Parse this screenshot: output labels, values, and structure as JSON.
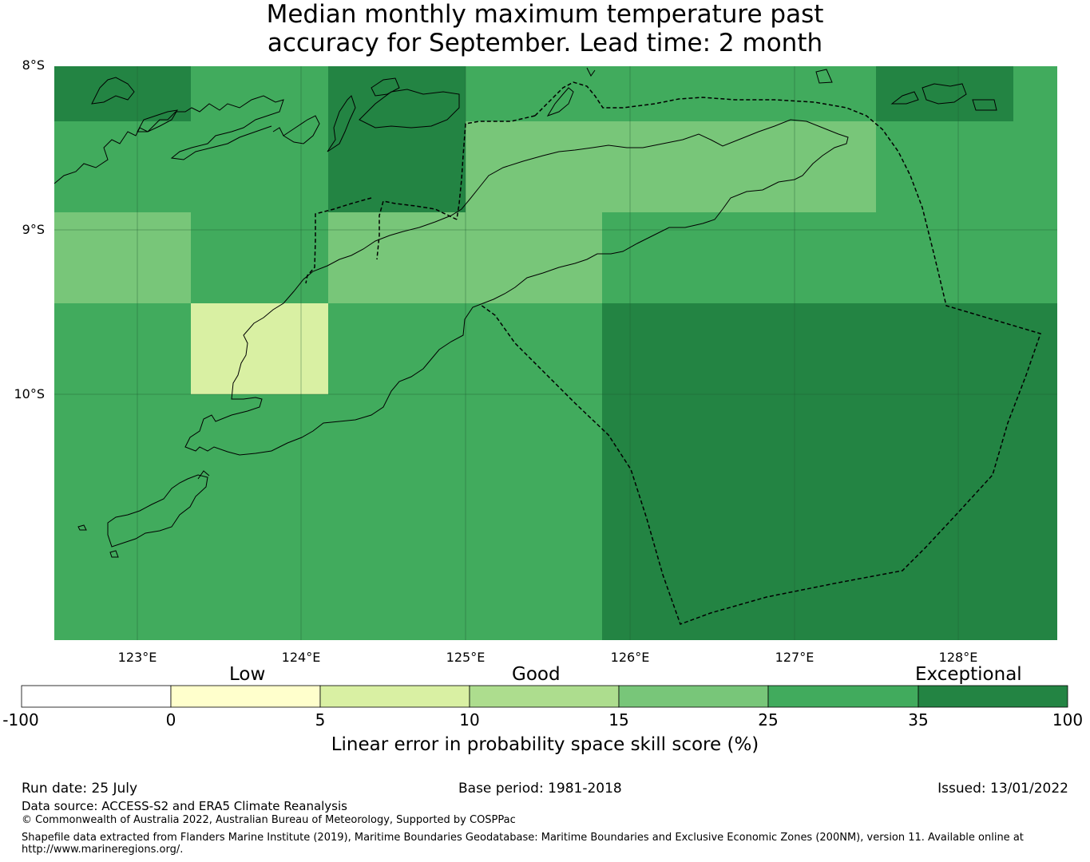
{
  "title": {
    "line1": "Median monthly maximum temperature past",
    "line2": "accuracy for September. Lead time: 2 month"
  },
  "map": {
    "lat_labels": [
      "8°S",
      "9°S",
      "10°S"
    ],
    "lon_labels": [
      "123°E",
      "124°E",
      "125°E",
      "126°E",
      "127°E",
      "128°E"
    ],
    "lat_range": [
      -11.5,
      -8.0
    ],
    "lon_range": [
      122.5,
      128.6
    ],
    "grid_cell_size_deg": [
      0.833,
      0.555
    ],
    "grid": [
      [
        35,
        25,
        35,
        25,
        25,
        25,
        35,
        25
      ],
      [
        25,
        25,
        35,
        15,
        15,
        15,
        25,
        25
      ],
      [
        15,
        25,
        15,
        15,
        25,
        25,
        25,
        25
      ],
      [
        25,
        5,
        25,
        25,
        35,
        35,
        35,
        35
      ],
      [
        25,
        25,
        25,
        25,
        35,
        35,
        35,
        35
      ],
      [
        25,
        25,
        25,
        25,
        35,
        35,
        35,
        35
      ]
    ]
  },
  "colorbar": {
    "category_labels": [
      "Low",
      "Good",
      "Exceptional"
    ],
    "ticks": [
      "-100",
      "0",
      "5",
      "10",
      "15",
      "25",
      "35",
      "100"
    ],
    "colors": [
      "#ffffff",
      "#ffffcc",
      "#d9f0a3",
      "#addd8e",
      "#78c679",
      "#41ab5d",
      "#238443"
    ],
    "caption": "Linear error in probability space skill score (%)"
  },
  "footer": {
    "run_date": "Run date: 25 July",
    "base_period": "Base period: 1981-2018",
    "issued": "Issued: 13/01/2022",
    "data_source": "Data source: ACCESS-S2 and ERA5 Climate Reanalysis",
    "copyright": "© Commonwealth of Australia 2022, Australian Bureau of Meteorology, Supported by COSPPac",
    "shapefile_line1": "Shapefile data extracted from Flanders Marine Institute (2019), Maritime Boundaries Geodatabase: Maritime Boundaries and Exclusive Economic Zones (200NM), version 11. Available online at",
    "shapefile_line2": "http://www.marineregions.org/."
  }
}
